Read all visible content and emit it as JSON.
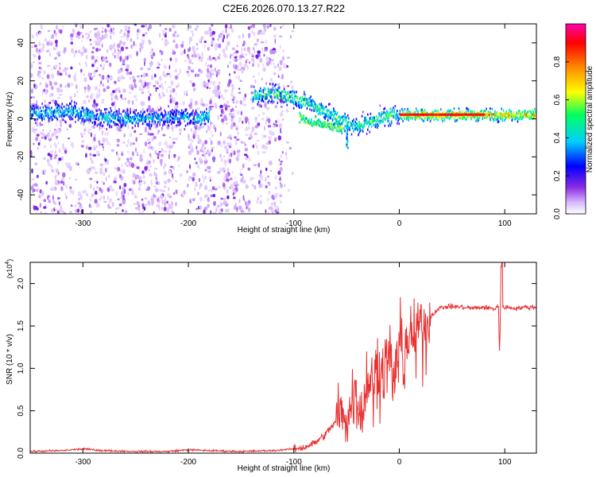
{
  "title": "C2E6.2026.070.13.27.R22",
  "chart_data": [
    {
      "type": "heatmap",
      "name": "spectrogram",
      "xlabel": "Height of straight line (km)",
      "ylabel": "Frequency (Hz)",
      "xlim": [
        -350,
        130
      ],
      "ylim": [
        -50,
        50
      ],
      "x_ticks": [
        -300,
        -200,
        -100,
        0,
        100
      ],
      "x_tick_labels": [
        "-300",
        "-200",
        "-100",
        "0",
        "100"
      ],
      "y_ticks": [
        40,
        20,
        0,
        -20,
        -40
      ],
      "y_tick_labels": [
        "40",
        "20",
        "0",
        "-20",
        "-40"
      ],
      "colorbar": {
        "label": "Normalized spectral amplitude",
        "range": [
          0,
          1
        ],
        "ticks": [
          0.0,
          0.2,
          0.4,
          0.6,
          0.8
        ],
        "tick_labels": [
          "0.0",
          "0.2",
          "0.4",
          "0.6",
          "0.8"
        ],
        "colors": [
          "#ffffff",
          "#d8b8ff",
          "#8a2be2",
          "#0000ff",
          "#00d0ff",
          "#00ff60",
          "#ffff00",
          "#ff8000",
          "#ff0000",
          "#ff00aa"
        ]
      },
      "ridge": {
        "x": [
          -340,
          -310,
          -290,
          -260,
          -230,
          -210,
          -190,
          -140,
          -120,
          -105,
          -95,
          -85,
          -75,
          -65,
          -55,
          -45,
          -35,
          -25,
          -15,
          0,
          30,
          60,
          90,
          130
        ],
        "y": [
          3,
          4,
          1,
          0,
          0,
          1,
          0,
          12,
          13,
          12,
          10,
          8,
          5,
          2,
          -1,
          -4,
          -3,
          -1,
          1,
          2,
          2,
          2,
          2,
          2
        ]
      },
      "secondary_ridge": {
        "x": [
          -95,
          -85,
          -75,
          -65,
          -55
        ],
        "y": [
          1,
          -2,
          -3,
          -4,
          -5
        ]
      }
    },
    {
      "type": "line",
      "name": "snr",
      "xlabel": "Height of straight line (km)",
      "ylabel": "SNR (10 * v/v)",
      "multiplier_label": "(x10",
      "multiplier_exponent": "4",
      "multiplier_close": ")",
      "xlim": [
        -350,
        130
      ],
      "ylim": [
        0,
        2.25
      ],
      "x_ticks": [
        -300,
        -200,
        -100,
        0,
        100
      ],
      "x_tick_labels": [
        "-300",
        "-200",
        "-100",
        "0",
        "100"
      ],
      "y_ticks": [
        0.0,
        0.5,
        1.0,
        1.5,
        2.0
      ],
      "y_tick_labels": [
        "0.0",
        "0.5",
        "1.0",
        "1.5",
        "2.0"
      ],
      "color": "#e83030",
      "series": [
        {
          "name": "SNR",
          "x": [
            -350,
            -320,
            -300,
            -280,
            -250,
            -220,
            -200,
            -180,
            -150,
            -120,
            -100,
            -90,
            -80,
            -70,
            -60,
            -55,
            -50,
            -45,
            -40,
            -35,
            -30,
            -25,
            -20,
            -15,
            -10,
            -5,
            0,
            5,
            10,
            15,
            20,
            25,
            30,
            35,
            40,
            50,
            60,
            70,
            80,
            90,
            95,
            100,
            110,
            120,
            130
          ],
          "y": [
            0.02,
            0.03,
            0.05,
            0.03,
            0.02,
            0.02,
            0.04,
            0.03,
            0.02,
            0.03,
            0.05,
            0.07,
            0.12,
            0.22,
            0.38,
            0.5,
            0.35,
            0.6,
            0.75,
            0.5,
            0.95,
            0.85,
            1.1,
            1.0,
            1.2,
            0.95,
            1.35,
            1.25,
            1.4,
            1.35,
            1.5,
            1.55,
            1.62,
            1.68,
            1.72,
            1.73,
            1.72,
            1.71,
            1.72,
            1.7,
            1.75,
            1.72,
            1.71,
            1.72,
            1.72
          ]
        }
      ]
    }
  ]
}
